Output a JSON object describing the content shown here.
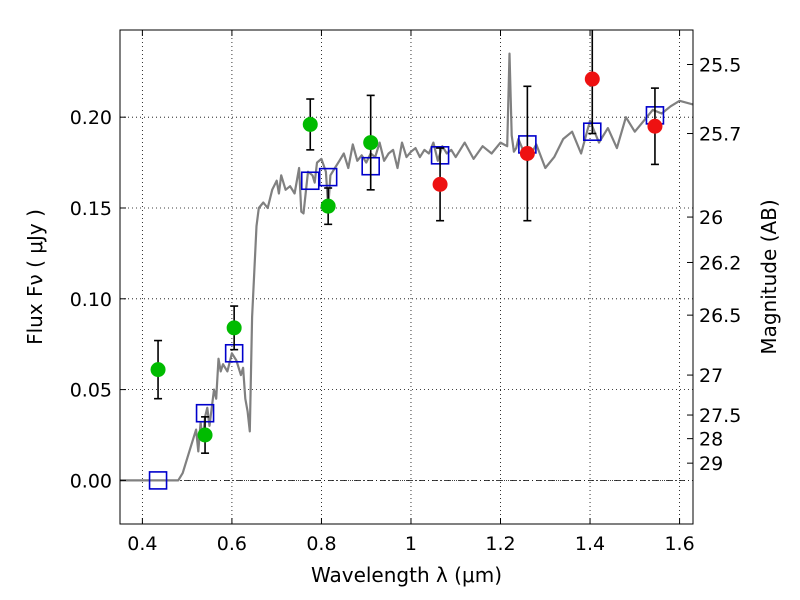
{
  "chart_data": {
    "type": "scatter",
    "xlabel": "Wavelength  λ (μm)",
    "ylabel": "Flux  Fν  ( μJy )",
    "y2label": "Magnitude (AB)",
    "xlim": [
      0.35,
      1.63
    ],
    "ylim": [
      -0.024,
      0.248
    ],
    "grid": true,
    "x_ticks": [
      0.4,
      0.6,
      0.8,
      1.0,
      1.2,
      1.4,
      1.6
    ],
    "x_tick_labels": [
      "0.4",
      "0.6",
      "0.8",
      "1",
      "1.2",
      "1.4",
      "1.6"
    ],
    "y_ticks": [
      0.0,
      0.05,
      0.1,
      0.15,
      0.2
    ],
    "y_tick_labels": [
      "0.00",
      "0.05",
      "0.10",
      "0.15",
      "0.20"
    ],
    "magnitude_ticks": [
      {
        "label": "25.5",
        "flux": 0.229
      },
      {
        "label": "25.7",
        "flux": 0.191
      },
      {
        "label": "26",
        "flux": 0.145
      },
      {
        "label": "26.2",
        "flux": 0.12
      },
      {
        "label": "26.5",
        "flux": 0.091
      },
      {
        "label": "27",
        "flux": 0.058
      },
      {
        "label": "27.5",
        "flux": 0.036
      },
      {
        "label": "28",
        "flux": 0.023
      },
      {
        "label": "29",
        "flux": 0.0095
      }
    ],
    "colors": {
      "model": "#808080",
      "green": "#00bb00",
      "red": "#ee1111",
      "square": "#0000cc",
      "errorbar": "#000000"
    },
    "series": [
      {
        "style": "line",
        "color": "#808080",
        "x": [
          0.35,
          0.4,
          0.45,
          0.48,
          0.49,
          0.51,
          0.52,
          0.525,
          0.53,
          0.535,
          0.54,
          0.545,
          0.55,
          0.56,
          0.565,
          0.57,
          0.575,
          0.58,
          0.59,
          0.6,
          0.61,
          0.62,
          0.625,
          0.63,
          0.635,
          0.64,
          0.645,
          0.65,
          0.655,
          0.66,
          0.67,
          0.68,
          0.69,
          0.7,
          0.705,
          0.71,
          0.72,
          0.73,
          0.74,
          0.75,
          0.755,
          0.76,
          0.77,
          0.78,
          0.785,
          0.79,
          0.8,
          0.81,
          0.815,
          0.82,
          0.83,
          0.84,
          0.85,
          0.86,
          0.87,
          0.88,
          0.89,
          0.9,
          0.91,
          0.92,
          0.93,
          0.94,
          0.95,
          0.96,
          0.97,
          0.98,
          0.99,
          1.0,
          1.01,
          1.02,
          1.03,
          1.04,
          1.05,
          1.06,
          1.07,
          1.08,
          1.09,
          1.1,
          1.12,
          1.14,
          1.16,
          1.18,
          1.2,
          1.215,
          1.22,
          1.225,
          1.23,
          1.235,
          1.24,
          1.26,
          1.28,
          1.3,
          1.32,
          1.34,
          1.36,
          1.38,
          1.4,
          1.42,
          1.44,
          1.46,
          1.48,
          1.5,
          1.52,
          1.54,
          1.56,
          1.58,
          1.6,
          1.63
        ],
        "y": [
          0.0,
          0.0,
          0.0,
          0.0,
          0.004,
          0.02,
          0.028,
          0.016,
          0.032,
          0.022,
          0.035,
          0.04,
          0.03,
          0.05,
          0.045,
          0.067,
          0.06,
          0.064,
          0.06,
          0.07,
          0.066,
          0.058,
          0.062,
          0.045,
          0.038,
          0.027,
          0.09,
          0.115,
          0.14,
          0.15,
          0.153,
          0.15,
          0.16,
          0.165,
          0.158,
          0.168,
          0.16,
          0.162,
          0.158,
          0.172,
          0.148,
          0.147,
          0.17,
          0.168,
          0.164,
          0.175,
          0.177,
          0.17,
          0.15,
          0.168,
          0.172,
          0.176,
          0.18,
          0.172,
          0.185,
          0.176,
          0.179,
          0.175,
          0.18,
          0.178,
          0.186,
          0.176,
          0.18,
          0.182,
          0.172,
          0.186,
          0.178,
          0.181,
          0.183,
          0.178,
          0.182,
          0.18,
          0.186,
          0.176,
          0.184,
          0.18,
          0.182,
          0.178,
          0.186,
          0.177,
          0.184,
          0.18,
          0.186,
          0.184,
          0.235,
          0.19,
          0.181,
          0.183,
          0.188,
          0.176,
          0.185,
          0.172,
          0.178,
          0.188,
          0.192,
          0.18,
          0.198,
          0.186,
          0.194,
          0.183,
          0.2,
          0.192,
          0.198,
          0.204,
          0.202,
          0.206,
          0.209,
          0.207
        ]
      },
      {
        "style": "open-square",
        "color": "#0000cc",
        "x": [
          0.435,
          0.54,
          0.605,
          0.775,
          0.815,
          0.91,
          1.065,
          1.26,
          1.405,
          1.545
        ],
        "y": [
          0.0,
          0.037,
          0.07,
          0.165,
          0.167,
          0.173,
          0.179,
          0.185,
          0.192,
          0.201
        ]
      },
      {
        "style": "dot",
        "color": "#00bb00",
        "x": [
          0.435,
          0.54,
          0.605,
          0.775,
          0.815,
          0.91
        ],
        "y": [
          0.061,
          0.025,
          0.084,
          0.196,
          0.151,
          0.186
        ],
        "yerr": [
          0.016,
          0.01,
          0.012,
          0.014,
          0.01,
          0.026
        ]
      },
      {
        "style": "dot",
        "color": "#ee1111",
        "x": [
          1.065,
          1.26,
          1.405,
          1.545
        ],
        "y": [
          0.163,
          0.18,
          0.221,
          0.195
        ],
        "yerr": [
          0.02,
          0.037,
          0.03,
          0.021
        ]
      }
    ]
  }
}
